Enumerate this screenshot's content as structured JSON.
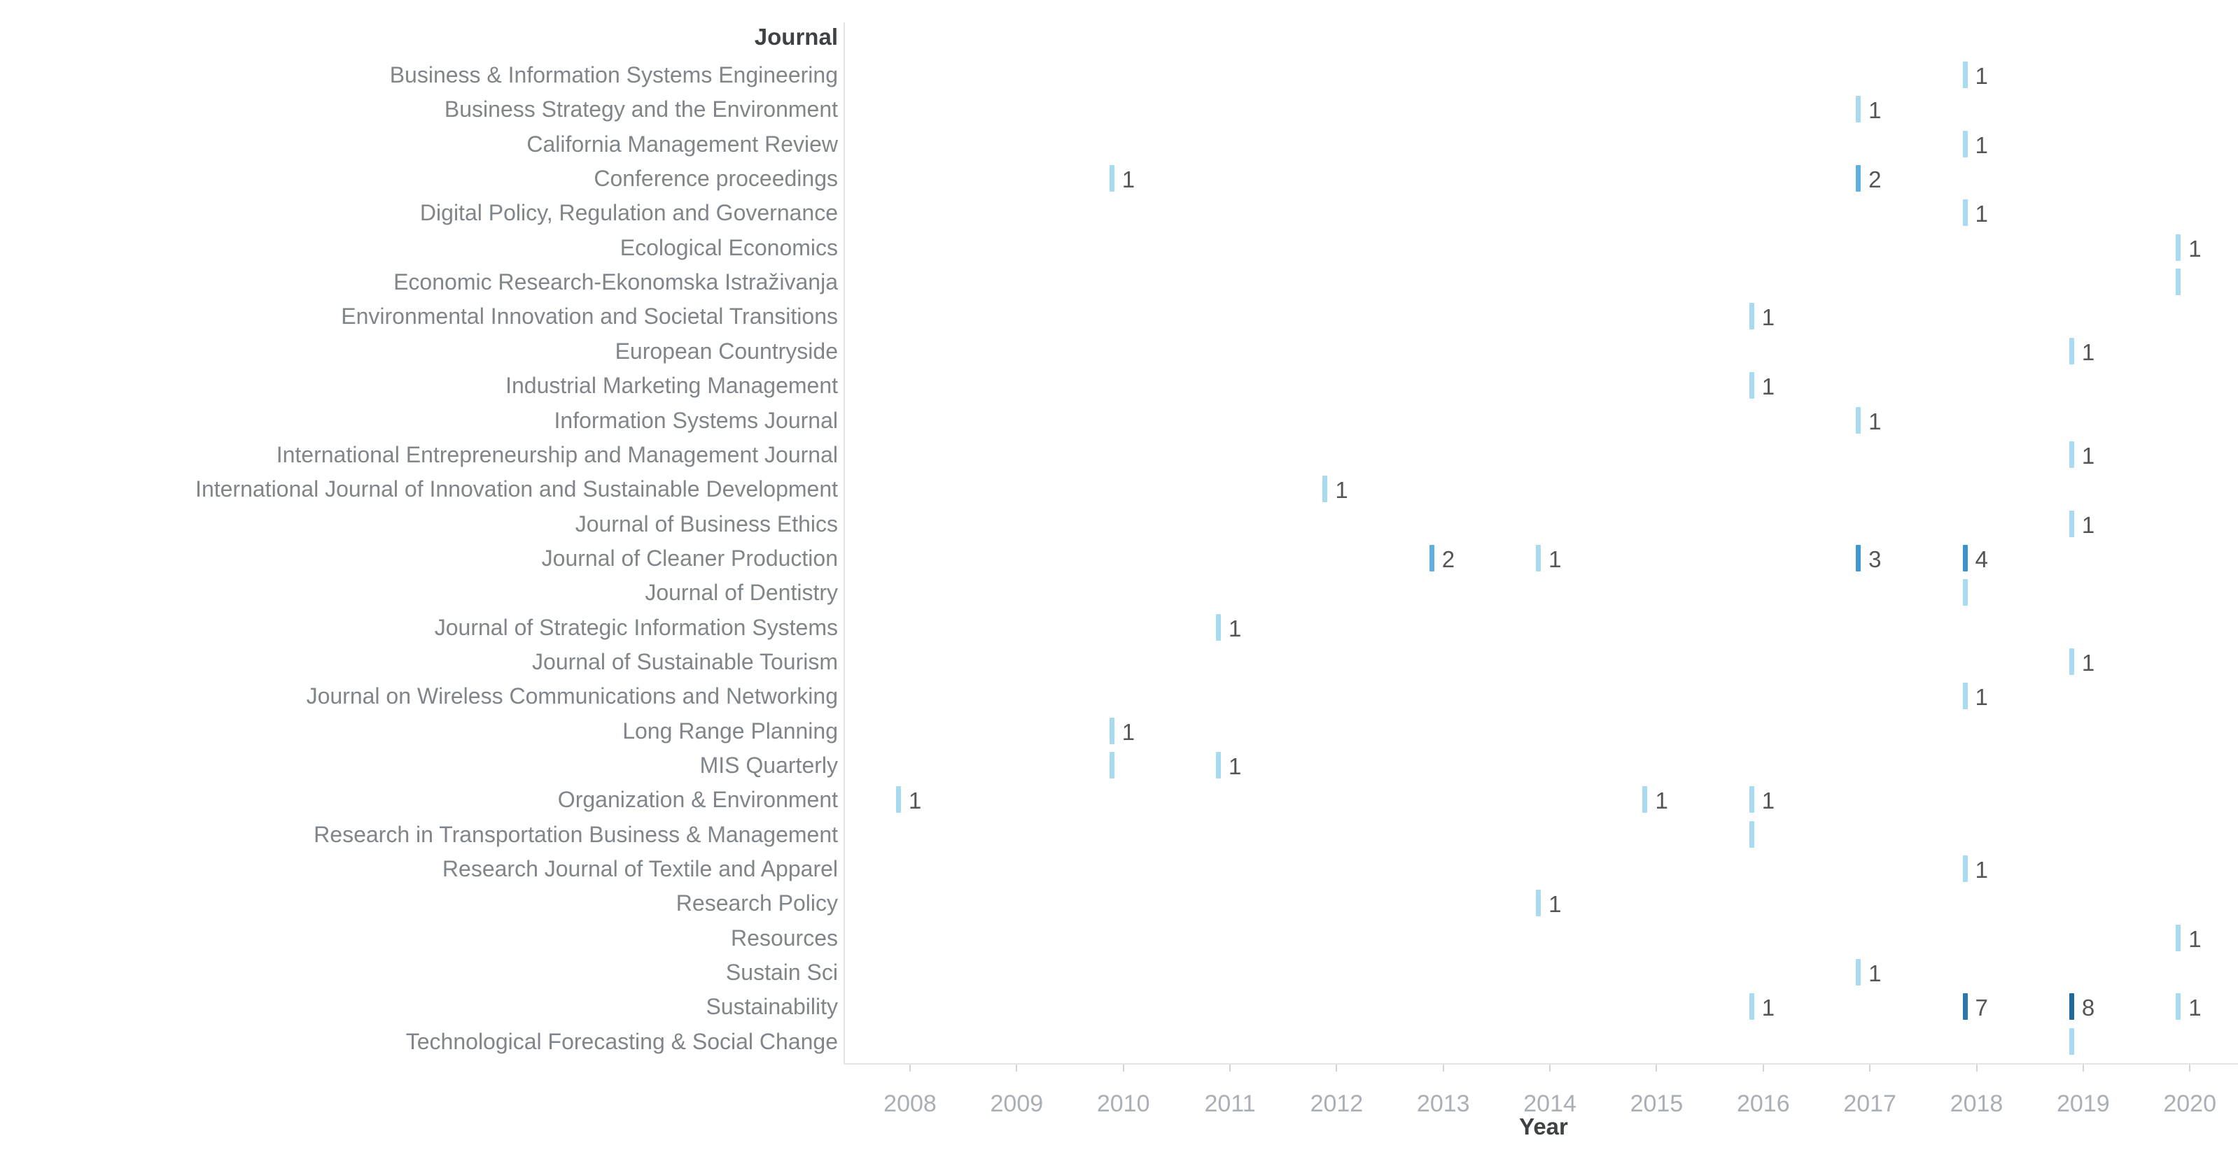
{
  "chart_data": {
    "type": "gantt",
    "title": "",
    "row_header": "Journal",
    "xlabel": "Year",
    "x_domain": [
      2008,
      2020
    ],
    "grid": "off",
    "legend": "none",
    "years": [
      "2008",
      "2009",
      "2010",
      "2011",
      "2012",
      "2013",
      "2014",
      "2015",
      "2016",
      "2017",
      "2018",
      "2019",
      "2020"
    ],
    "journals": [
      "Business & Information Systems Engineering",
      "Business Strategy and the Environment",
      "California Management Review",
      "Conference proceedings",
      "Digital Policy, Regulation and Governance",
      "Ecological Economics",
      "Economic Research-Ekonomska Istraživanja",
      "Environmental Innovation and Societal Transitions",
      "European Countryside",
      "Industrial Marketing Management",
      "Information Systems Journal",
      "International Entrepreneurship and Management Journal",
      "International Journal of Innovation and Sustainable Development",
      "Journal of Business Ethics",
      "Journal of Cleaner Production",
      "Journal of Dentistry",
      "Journal of Strategic Information Systems",
      "Journal of Sustainable Tourism",
      "Journal on Wireless Communications and Networking",
      "Long Range Planning",
      "MIS Quarterly",
      "Organization & Environment",
      "Research in Transportation Business & Management",
      "Research Journal of Textile and Apparel",
      "Research Policy",
      "Resources",
      "Sustain Sci",
      "Sustainability",
      "Technological Forecasting & Social Change"
    ],
    "marks": [
      {
        "journal": "Business & Information Systems Engineering",
        "year": 2018,
        "count": "1",
        "color": "#a8dbf2"
      },
      {
        "journal": "Business Strategy and the Environment",
        "year": 2017,
        "count": "1",
        "color": "#a8dbf2"
      },
      {
        "journal": "California Management Review",
        "year": 2018,
        "count": "1",
        "color": "#a8dbf2"
      },
      {
        "journal": "Conference proceedings",
        "year": 2010,
        "count": "1",
        "color": "#a8dbf2"
      },
      {
        "journal": "Conference proceedings",
        "year": 2017,
        "count": "2",
        "color": "#5fb0e1"
      },
      {
        "journal": "Digital Policy, Regulation and Governance",
        "year": 2018,
        "count": "1",
        "color": "#a8dbf2"
      },
      {
        "journal": "Ecological Economics",
        "year": 2020,
        "count": "1",
        "color": "#a8dbf2"
      },
      {
        "journal": "Economic Research-Ekonomska Istraživanja",
        "year": 2020,
        "count": null,
        "color": "#a8dbf2"
      },
      {
        "journal": "Environmental Innovation and Societal Transitions",
        "year": 2016,
        "count": "1",
        "color": "#a8dbf2"
      },
      {
        "journal": "European Countryside",
        "year": 2019,
        "count": "1",
        "color": "#a8dbf2"
      },
      {
        "journal": "Industrial Marketing Management",
        "year": 2016,
        "count": "1",
        "color": "#a8dbf2"
      },
      {
        "journal": "Information Systems Journal",
        "year": 2017,
        "count": "1",
        "color": "#a8dbf2"
      },
      {
        "journal": "International Entrepreneurship and Management Journal",
        "year": 2019,
        "count": "1",
        "color": "#a8dbf2"
      },
      {
        "journal": "International Journal of Innovation and Sustainable Development",
        "year": 2012,
        "count": "1",
        "color": "#a8dbf2"
      },
      {
        "journal": "Journal of Business Ethics",
        "year": 2019,
        "count": "1",
        "color": "#a8dbf2"
      },
      {
        "journal": "Journal of Cleaner Production",
        "year": 2013,
        "count": "2",
        "color": "#5fb0e1"
      },
      {
        "journal": "Journal of Cleaner Production",
        "year": 2014,
        "count": "1",
        "color": "#a8dbf2"
      },
      {
        "journal": "Journal of Cleaner Production",
        "year": 2017,
        "count": "3",
        "color": "#3e96d2"
      },
      {
        "journal": "Journal of Cleaner Production",
        "year": 2018,
        "count": "4",
        "color": "#3a92cf"
      },
      {
        "journal": "Journal of Dentistry",
        "year": 2018,
        "count": null,
        "color": "#a8dbf2"
      },
      {
        "journal": "Journal of Strategic Information Systems",
        "year": 2011,
        "count": "1",
        "color": "#a8dbf2"
      },
      {
        "journal": "Journal of Sustainable Tourism",
        "year": 2019,
        "count": "1",
        "color": "#a8dbf2"
      },
      {
        "journal": "Journal on Wireless Communications and Networking",
        "year": 2018,
        "count": "1",
        "color": "#a8dbf2"
      },
      {
        "journal": "Long Range Planning",
        "year": 2010,
        "count": "1",
        "color": "#a8dbf2"
      },
      {
        "journal": "MIS Quarterly",
        "year": 2010,
        "count": null,
        "color": "#a8dbf2"
      },
      {
        "journal": "MIS Quarterly",
        "year": 2011,
        "count": "1",
        "color": "#a8dbf2"
      },
      {
        "journal": "Organization & Environment",
        "year": 2008,
        "count": "1",
        "color": "#a8dbf2"
      },
      {
        "journal": "Organization & Environment",
        "year": 2015,
        "count": "1",
        "color": "#a8dbf2"
      },
      {
        "journal": "Organization & Environment",
        "year": 2016,
        "count": "1",
        "color": "#a8dbf2"
      },
      {
        "journal": "Research in Transportation Business & Management",
        "year": 2016,
        "count": null,
        "color": "#a8dbf2"
      },
      {
        "journal": "Research Journal of Textile and Apparel",
        "year": 2018,
        "count": "1",
        "color": "#a8dbf2"
      },
      {
        "journal": "Research Policy",
        "year": 2014,
        "count": "1",
        "color": "#a8dbf2"
      },
      {
        "journal": "Resources",
        "year": 2020,
        "count": "1",
        "color": "#a8dbf2"
      },
      {
        "journal": "Sustain Sci",
        "year": 2017,
        "count": "1",
        "color": "#a8dbf2"
      },
      {
        "journal": "Sustainability",
        "year": 2016,
        "count": "1",
        "color": "#a8dbf2"
      },
      {
        "journal": "Sustainability",
        "year": 2018,
        "count": "7",
        "color": "#2b76aa"
      },
      {
        "journal": "Sustainability",
        "year": 2019,
        "count": "8",
        "color": "#1f689e"
      },
      {
        "journal": "Sustainability",
        "year": 2020,
        "count": "1",
        "color": "#a8dbf2"
      },
      {
        "journal": "Technological Forecasting & Social Change",
        "year": 2019,
        "count": null,
        "color": "#a8dbf2"
      }
    ],
    "palette": {
      "count_1": "#a8dbf2",
      "count_2": "#5fb0e1",
      "count_3": "#3e96d2",
      "count_4": "#3a92cf",
      "count_7": "#2b76aa",
      "count_8": "#1f689e"
    },
    "text_colors": {
      "header": "#3f4245",
      "row_label": "#80858a",
      "year_label": "#aaafb5",
      "count_label": "#555555",
      "axis_line": "#e3e3e3"
    }
  }
}
